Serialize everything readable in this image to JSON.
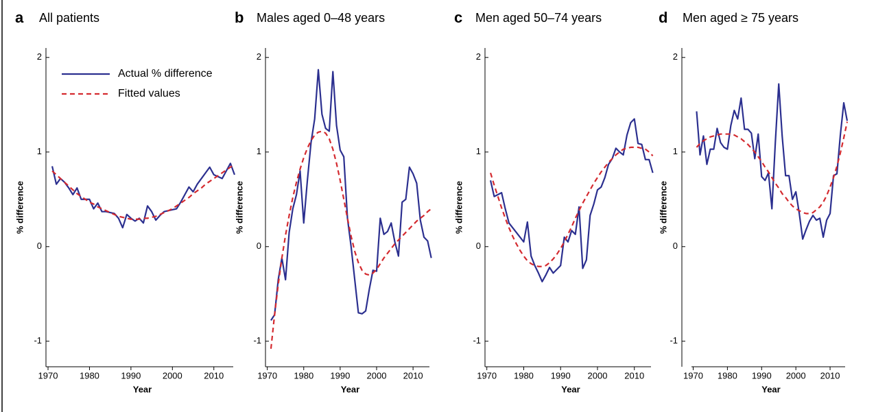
{
  "chart_data": [
    {
      "type": "line",
      "panel": "a",
      "title": "All patients",
      "xlabel": "Year",
      "ylabel": "% difference",
      "x": [
        1971,
        1972,
        1973,
        1974,
        1975,
        1976,
        1977,
        1978,
        1979,
        1980,
        1981,
        1982,
        1983,
        1984,
        1985,
        1986,
        1987,
        1988,
        1989,
        1990,
        1991,
        1992,
        1993,
        1994,
        1995,
        1996,
        1997,
        1998,
        1999,
        2000,
        2001,
        2002,
        2003,
        2004,
        2005,
        2006,
        2007,
        2008,
        2009,
        2010,
        2011,
        2012,
        2013,
        2014,
        2015
      ],
      "xlim": [
        1969.5,
        2016
      ],
      "xticks": [
        1970,
        1980,
        1990,
        2000,
        2010
      ],
      "ylim": [
        -1.27,
        2.1
      ],
      "yticks": [
        -1,
        0,
        1,
        2
      ],
      "legend": "upper left",
      "series": [
        {
          "name": "Actual % difference",
          "color": "#2b2f8f",
          "dash": false,
          "values": [
            0.85,
            0.66,
            0.72,
            0.68,
            0.62,
            0.55,
            0.62,
            0.5,
            0.5,
            0.5,
            0.4,
            0.46,
            0.37,
            0.37,
            0.36,
            0.35,
            0.3,
            0.2,
            0.34,
            0.3,
            0.27,
            0.3,
            0.25,
            0.43,
            0.37,
            0.28,
            0.33,
            0.37,
            0.38,
            0.39,
            0.4,
            0.47,
            0.55,
            0.63,
            0.58,
            0.66,
            0.72,
            0.78,
            0.84,
            0.76,
            0.74,
            0.72,
            0.8,
            0.88,
            0.76
          ]
        },
        {
          "name": "Fitted values",
          "color": "#d42a2f",
          "dash": true,
          "values": [
            0.8,
            0.76,
            0.72,
            0.68,
            0.64,
            0.6,
            0.56,
            0.53,
            0.5,
            0.47,
            0.45,
            0.42,
            0.4,
            0.38,
            0.36,
            0.34,
            0.32,
            0.31,
            0.3,
            0.29,
            0.29,
            0.29,
            0.3,
            0.3,
            0.31,
            0.32,
            0.34,
            0.36,
            0.38,
            0.4,
            0.43,
            0.46,
            0.49,
            0.52,
            0.56,
            0.59,
            0.62,
            0.66,
            0.69,
            0.72,
            0.75,
            0.78,
            0.81,
            0.84,
            0.87
          ]
        }
      ]
    },
    {
      "type": "line",
      "panel": "b",
      "title": "Males aged 0–48 years",
      "xlabel": "Year",
      "ylabel": "% difference",
      "x": [
        1971,
        1972,
        1973,
        1974,
        1975,
        1976,
        1977,
        1978,
        1979,
        1980,
        1981,
        1982,
        1983,
        1984,
        1985,
        1986,
        1987,
        1988,
        1989,
        1990,
        1991,
        1992,
        1993,
        1994,
        1995,
        1996,
        1997,
        1998,
        1999,
        2000,
        2001,
        2002,
        2003,
        2004,
        2005,
        2006,
        2007,
        2008,
        2009,
        2010,
        2011,
        2012,
        2013,
        2014,
        2015
      ],
      "xlim": [
        1969.5,
        2016
      ],
      "xticks": [
        1970,
        1980,
        1990,
        2000,
        2010
      ],
      "ylim": [
        -1.27,
        2.1
      ],
      "yticks": [
        -1,
        0,
        1,
        2
      ],
      "series": [
        {
          "color": "#2b2f8f",
          "dash": false,
          "values": [
            -0.78,
            -0.72,
            -0.35,
            -0.12,
            -0.35,
            0.15,
            0.4,
            0.55,
            0.8,
            0.25,
            0.7,
            1.1,
            1.35,
            1.87,
            1.4,
            1.25,
            1.22,
            1.85,
            1.28,
            1.02,
            0.95,
            0.3,
            0.0,
            -0.35,
            -0.7,
            -0.71,
            -0.68,
            -0.45,
            -0.25,
            -0.26,
            0.3,
            0.13,
            0.16,
            0.25,
            0.05,
            -0.1,
            0.47,
            0.5,
            0.84,
            0.77,
            0.67,
            0.28,
            0.1,
            0.06,
            -0.12
          ]
        },
        {
          "color": "#d42a2f",
          "dash": true,
          "values": [
            -1.08,
            -0.72,
            -0.4,
            -0.12,
            0.12,
            0.33,
            0.52,
            0.68,
            0.82,
            0.94,
            1.04,
            1.12,
            1.18,
            1.21,
            1.22,
            1.2,
            1.14,
            1.03,
            0.88,
            0.7,
            0.5,
            0.3,
            0.11,
            -0.05,
            -0.17,
            -0.25,
            -0.29,
            -0.3,
            -0.28,
            -0.24,
            -0.18,
            -0.12,
            -0.07,
            -0.02,
            0.03,
            0.07,
            0.11,
            0.15,
            0.19,
            0.23,
            0.27,
            0.3,
            0.33,
            0.37,
            0.4
          ]
        }
      ]
    },
    {
      "type": "line",
      "panel": "c",
      "title": "Men aged 50–74 years",
      "xlabel": "Year",
      "ylabel": "% difference",
      "x": [
        1971,
        1972,
        1973,
        1974,
        1975,
        1976,
        1977,
        1978,
        1979,
        1980,
        1981,
        1982,
        1983,
        1984,
        1985,
        1986,
        1987,
        1988,
        1989,
        1990,
        1991,
        1992,
        1993,
        1994,
        1995,
        1996,
        1997,
        1998,
        1999,
        2000,
        2001,
        2002,
        2003,
        2004,
        2005,
        2006,
        2007,
        2008,
        2009,
        2010,
        2011,
        2012,
        2013,
        2014,
        2015
      ],
      "xlim": [
        1969.5,
        2016
      ],
      "xticks": [
        1970,
        1980,
        1990,
        2000,
        2010
      ],
      "ylim": [
        -1.27,
        2.1
      ],
      "yticks": [
        -1,
        0,
        1,
        2
      ],
      "series": [
        {
          "color": "#2b2f8f",
          "dash": false,
          "values": [
            0.7,
            0.53,
            0.55,
            0.57,
            0.4,
            0.25,
            0.2,
            0.15,
            0.1,
            0.05,
            0.26,
            -0.1,
            -0.2,
            -0.28,
            -0.37,
            -0.3,
            -0.22,
            -0.28,
            -0.24,
            -0.2,
            0.1,
            0.05,
            0.17,
            0.13,
            0.42,
            -0.23,
            -0.14,
            0.33,
            0.45,
            0.6,
            0.63,
            0.73,
            0.87,
            0.93,
            1.04,
            1.0,
            0.97,
            1.18,
            1.31,
            1.35,
            1.09,
            1.08,
            0.92,
            0.92,
            0.78
          ]
        },
        {
          "color": "#d42a2f",
          "dash": true,
          "values": [
            0.78,
            0.65,
            0.53,
            0.41,
            0.3,
            0.2,
            0.11,
            0.03,
            -0.04,
            -0.1,
            -0.15,
            -0.18,
            -0.2,
            -0.21,
            -0.21,
            -0.2,
            -0.17,
            -0.13,
            -0.08,
            -0.02,
            0.05,
            0.13,
            0.21,
            0.3,
            0.38,
            0.46,
            0.53,
            0.6,
            0.67,
            0.73,
            0.79,
            0.84,
            0.89,
            0.93,
            0.97,
            1.0,
            1.03,
            1.04,
            1.05,
            1.05,
            1.05,
            1.04,
            1.03,
            1.0,
            0.96
          ]
        }
      ]
    },
    {
      "type": "line",
      "panel": "d",
      "title": "Men aged ≥ 75 years",
      "xlabel": "Year",
      "ylabel": "% difference",
      "x": [
        1971,
        1972,
        1973,
        1974,
        1975,
        1976,
        1977,
        1978,
        1979,
        1980,
        1981,
        1982,
        1983,
        1984,
        1985,
        1986,
        1987,
        1988,
        1989,
        1990,
        1991,
        1992,
        1993,
        1994,
        1995,
        1996,
        1997,
        1998,
        1999,
        2000,
        2001,
        2002,
        2003,
        2004,
        2005,
        2006,
        2007,
        2008,
        2009,
        2010,
        2011,
        2012,
        2013,
        2014,
        2015
      ],
      "xlim": [
        1969.5,
        2016
      ],
      "xticks": [
        1970,
        1980,
        1990,
        2000,
        2010
      ],
      "ylim": [
        -1.27,
        2.1
      ],
      "yticks": [
        -1,
        0,
        1,
        2
      ],
      "series": [
        {
          "color": "#2b2f8f",
          "dash": false,
          "values": [
            1.43,
            0.97,
            1.17,
            0.87,
            1.03,
            1.03,
            1.25,
            1.1,
            1.05,
            1.03,
            1.28,
            1.44,
            1.35,
            1.57,
            1.24,
            1.24,
            1.2,
            0.93,
            1.19,
            0.74,
            0.7,
            0.78,
            0.4,
            1.1,
            1.72,
            1.17,
            0.75,
            0.75,
            0.5,
            0.58,
            0.35,
            0.08,
            0.18,
            0.27,
            0.33,
            0.28,
            0.3,
            0.1,
            0.28,
            0.35,
            0.75,
            0.77,
            1.18,
            1.52,
            1.33
          ]
        },
        {
          "color": "#d42a2f",
          "dash": true,
          "values": [
            1.05,
            1.09,
            1.12,
            1.14,
            1.16,
            1.17,
            1.18,
            1.19,
            1.19,
            1.19,
            1.19,
            1.18,
            1.16,
            1.14,
            1.11,
            1.08,
            1.04,
            1.0,
            0.95,
            0.9,
            0.84,
            0.79,
            0.73,
            0.67,
            0.62,
            0.56,
            0.52,
            0.47,
            0.43,
            0.4,
            0.38,
            0.36,
            0.35,
            0.35,
            0.36,
            0.39,
            0.42,
            0.47,
            0.54,
            0.63,
            0.73,
            0.85,
            0.99,
            1.15,
            1.32
          ]
        }
      ]
    }
  ]
}
